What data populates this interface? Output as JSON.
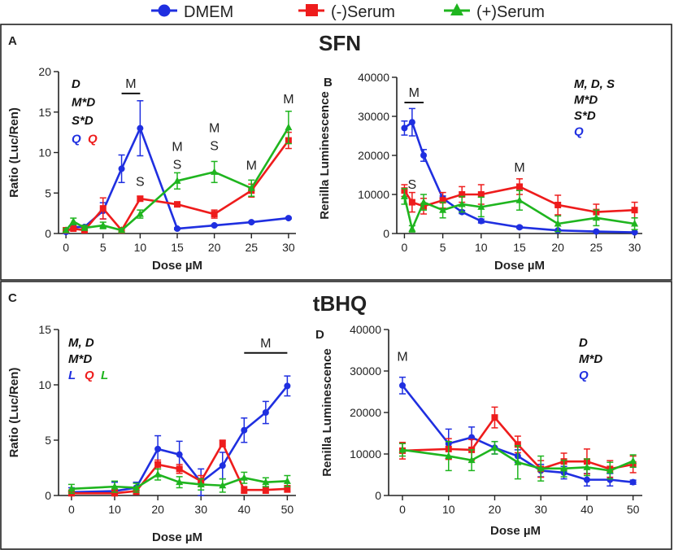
{
  "legend": [
    {
      "label": "DMEM",
      "color": "#1f2fe0",
      "marker": "circle"
    },
    {
      "label": "(-)Serum",
      "color": "#ee1c1c",
      "marker": "square"
    },
    {
      "label": "(+)Serum",
      "color": "#1fb51f",
      "marker": "triangle"
    }
  ],
  "sections": [
    {
      "title": "SFN",
      "panels": [
        "A",
        "B"
      ]
    },
    {
      "title": "tBHQ",
      "panels": [
        "C",
        "D"
      ]
    }
  ],
  "chart_data": [
    {
      "panel": "A",
      "type": "line",
      "xlabel": "Dose µM",
      "ylabel": "Ratio (Luc/Ren)",
      "xlim": [
        -1,
        31
      ],
      "ylim": [
        0,
        20
      ],
      "xticks": [
        0,
        5,
        10,
        15,
        20,
        25,
        30
      ],
      "yticks": [
        0,
        5,
        10,
        15,
        20
      ],
      "series": [
        {
          "name": "DMEM",
          "x": [
            0,
            1,
            2.5,
            5,
            7.5,
            10,
            15,
            20,
            25,
            30
          ],
          "values": [
            0.2,
            0.8,
            0.8,
            2.8,
            8,
            13,
            0.6,
            1,
            1.4,
            1.9
          ],
          "err": [
            0.2,
            0.2,
            0.2,
            1,
            1.7,
            3.4,
            0.1,
            0.1,
            0.1,
            0.1
          ]
        },
        {
          "name": "(-)Serum",
          "x": [
            0,
            1,
            2.5,
            5,
            7.5,
            10,
            15,
            20,
            25,
            30
          ],
          "values": [
            0.4,
            0.6,
            0.4,
            3.1,
            0.4,
            4.3,
            3.6,
            2.4,
            5.3,
            11.5
          ],
          "err": [
            0.2,
            0.2,
            0.2,
            1.3,
            0.2,
            0.3,
            0.3,
            0.5,
            0.8,
            1
          ]
        },
        {
          "name": "(+)Serum",
          "x": [
            0,
            1,
            2.5,
            5,
            7.5,
            10,
            15,
            20,
            25,
            30
          ],
          "values": [
            0.4,
            1.5,
            0.7,
            1,
            0.4,
            2.4,
            6.5,
            7.6,
            5.6,
            13.1
          ],
          "err": [
            0.2,
            0.4,
            0.3,
            0.4,
            0.2,
            0.5,
            1,
            1.3,
            1,
            2
          ]
        }
      ],
      "stat_labels": [
        {
          "text": "D",
          "color": "#111111"
        },
        {
          "text": "M*D",
          "color": "#111111"
        },
        {
          "text": "S*D",
          "color": "#111111"
        },
        {
          "text": "Q",
          "color": "#1f2fe0"
        },
        {
          "text": "Q",
          "color": "#ee1c1c"
        }
      ],
      "annotations": [
        {
          "text": "M",
          "x": 8.75,
          "y": 18,
          "bar": [
            7.5,
            10
          ]
        },
        {
          "text": "S",
          "x": 10,
          "y": 5.9
        },
        {
          "text": "M",
          "x": 15,
          "y": 10.2
        },
        {
          "text": "S",
          "x": 15,
          "y": 8
        },
        {
          "text": "M",
          "x": 20,
          "y": 12.5
        },
        {
          "text": "S",
          "x": 20,
          "y": 10.3
        },
        {
          "text": "M",
          "x": 25,
          "y": 7.9
        },
        {
          "text": "M",
          "x": 30,
          "y": 16.1
        }
      ]
    },
    {
      "panel": "B",
      "type": "line",
      "xlabel": "Dose µM",
      "ylabel": "Renilla Luminescence",
      "xlim": [
        -1,
        31
      ],
      "ylim": [
        0,
        40000
      ],
      "xticks": [
        0,
        5,
        10,
        15,
        20,
        25,
        30
      ],
      "yticks": [
        0,
        10000,
        20000,
        30000,
        40000
      ],
      "series": [
        {
          "name": "DMEM",
          "x": [
            0,
            1,
            2.5,
            5,
            7.5,
            10,
            15,
            20,
            25,
            30
          ],
          "values": [
            27000,
            28500,
            20000,
            9000,
            5500,
            3200,
            1600,
            800,
            500,
            300
          ],
          "err": [
            1800,
            3500,
            1500,
            600,
            400,
            500,
            300,
            200,
            200,
            150
          ]
        },
        {
          "name": "(-)Serum",
          "x": [
            0,
            1,
            2.5,
            5,
            7.5,
            10,
            15,
            20,
            25,
            30
          ],
          "values": [
            11000,
            8000,
            7000,
            8500,
            10000,
            10000,
            12000,
            7300,
            5500,
            6000
          ],
          "err": [
            1500,
            2500,
            2000,
            2000,
            2000,
            2500,
            2000,
            2500,
            2000,
            2000
          ]
        },
        {
          "name": "(+)Serum",
          "x": [
            0,
            1,
            2.5,
            5,
            7.5,
            10,
            15,
            20,
            25,
            30
          ],
          "values": [
            9500,
            1200,
            8000,
            6000,
            7500,
            6800,
            8500,
            2500,
            4000,
            2500
          ],
          "err": [
            2000,
            800,
            2000,
            2000,
            2000,
            2500,
            2500,
            2000,
            2000,
            1500
          ]
        }
      ],
      "stat_labels": [
        {
          "text": "M, D, S",
          "color": "#111111"
        },
        {
          "text": "M*D",
          "color": "#111111"
        },
        {
          "text": "S*D",
          "color": "#111111"
        },
        {
          "text": "Q",
          "color": "#1f2fe0"
        }
      ],
      "annotations": [
        {
          "text": "M",
          "x": 1.25,
          "y": 35000,
          "bar": [
            0,
            2.5
          ]
        },
        {
          "text": "S",
          "x": 1,
          "y": 11500
        },
        {
          "text": "M",
          "x": 15,
          "y": 15800
        }
      ]
    },
    {
      "panel": "C",
      "type": "line",
      "xlabel": "Dose µM",
      "ylabel": "Ratio (Luc/Ren)",
      "xlim": [
        -3,
        52
      ],
      "ylim": [
        0,
        15
      ],
      "xticks": [
        0,
        10,
        20,
        30,
        40,
        50
      ],
      "yticks": [
        0,
        5,
        10,
        15
      ],
      "series": [
        {
          "name": "DMEM",
          "x": [
            0,
            10,
            15,
            20,
            25,
            30,
            35,
            40,
            45,
            50
          ],
          "values": [
            0.3,
            0.4,
            0.7,
            4.2,
            3.7,
            1.2,
            2.7,
            5.9,
            7.5,
            9.9
          ],
          "err": [
            0.4,
            0.8,
            0.5,
            1.2,
            1.2,
            1.2,
            1.2,
            1.1,
            1,
            0.9
          ]
        },
        {
          "name": "(-)Serum",
          "x": [
            0,
            10,
            15,
            20,
            25,
            30,
            35,
            40,
            45,
            50
          ],
          "values": [
            0.2,
            0.2,
            0.4,
            2.8,
            2.4,
            1.3,
            4.7,
            0.5,
            0.5,
            0.6
          ],
          "err": [
            0.3,
            0.3,
            0.3,
            0.4,
            0.4,
            0.5,
            0.3,
            0.3,
            0.3,
            0.3
          ]
        },
        {
          "name": "(+)Serum",
          "x": [
            0,
            10,
            15,
            20,
            25,
            30,
            35,
            40,
            45,
            50
          ],
          "values": [
            0.6,
            0.8,
            0.7,
            1.9,
            1.2,
            1,
            0.9,
            1.6,
            1.2,
            1.3
          ],
          "err": [
            0.4,
            0.5,
            0.4,
            0.5,
            0.5,
            0.5,
            0.6,
            0.5,
            0.4,
            0.5
          ]
        }
      ],
      "stat_labels": [
        {
          "text": "M, D",
          "color": "#111111"
        },
        {
          "text": "M*D",
          "color": "#111111"
        },
        {
          "text": "L",
          "color": "#1f2fe0"
        },
        {
          "text": "Q",
          "color": "#ee1c1c"
        },
        {
          "text": "L",
          "color": "#1fb51f"
        }
      ],
      "annotations": [
        {
          "text": "M",
          "x": 45,
          "y": 13.4,
          "bar": [
            40,
            50
          ]
        }
      ]
    },
    {
      "panel": "D",
      "type": "line",
      "xlabel": "Dose µM",
      "ylabel": "Renilla Luminescence",
      "xlim": [
        -3,
        52
      ],
      "ylim": [
        0,
        40000
      ],
      "xticks": [
        0,
        10,
        20,
        30,
        40,
        50
      ],
      "yticks": [
        0,
        10000,
        20000,
        30000,
        40000
      ],
      "series": [
        {
          "name": "DMEM",
          "x": [
            0,
            10,
            15,
            20,
            25,
            30,
            35,
            40,
            45,
            50
          ],
          "values": [
            26500,
            12500,
            14000,
            11500,
            9500,
            6000,
            5500,
            3800,
            3800,
            3200
          ],
          "err": [
            2000,
            3500,
            2500,
            1500,
            1500,
            1500,
            1500,
            1500,
            1500,
            500
          ]
        },
        {
          "name": "(-)Serum",
          "x": [
            0,
            10,
            15,
            20,
            25,
            30,
            35,
            40,
            45,
            50
          ],
          "values": [
            10800,
            11200,
            11000,
            18800,
            12300,
            6400,
            8200,
            8200,
            6400,
            7500
          ],
          "err": [
            2000,
            2500,
            2500,
            2500,
            2000,
            2000,
            2000,
            3000,
            2000,
            2000
          ]
        },
        {
          "name": "(+)Serum",
          "x": [
            0,
            10,
            15,
            20,
            25,
            30,
            35,
            40,
            45,
            50
          ],
          "values": [
            11000,
            9500,
            8500,
            11500,
            8000,
            6500,
            6500,
            6800,
            6000,
            8300
          ],
          "err": [
            1500,
            3500,
            2500,
            1500,
            4000,
            3000,
            2000,
            2000,
            2000,
            1500
          ]
        }
      ],
      "stat_labels": [
        {
          "text": "D",
          "color": "#111111"
        },
        {
          "text": "M*D",
          "color": "#111111"
        },
        {
          "text": "Q",
          "color": "#1f2fe0"
        }
      ],
      "annotations": [
        {
          "text": "M",
          "x": 0,
          "y": 32500
        }
      ]
    }
  ]
}
